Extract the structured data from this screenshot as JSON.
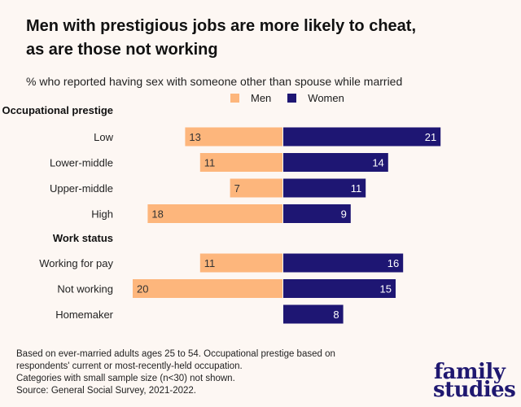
{
  "title": "Men with prestigious jobs are more likely to cheat, as are those not working",
  "title_lines": [
    "Men with prestigious jobs are more likely to cheat,",
    "as are those not working"
  ],
  "subtitle": "% who reported having sex with someone other than spouse while married",
  "legend": [
    {
      "label": "Men",
      "color": "#fdb67c"
    },
    {
      "label": "Women",
      "color": "#1e1673"
    }
  ],
  "chart_data": {
    "type": "bar",
    "orientation": "horizontal-diverging",
    "title": "Men with prestigious jobs are more likely to cheat, as are those not working",
    "subtitle": "% who reported having sex with someone other than spouse while married",
    "groups": [
      {
        "name": "Occupational prestige",
        "categories": [
          "Low",
          "Lower-middle",
          "Upper-middle",
          "High"
        ],
        "men": [
          13,
          11,
          7,
          18
        ],
        "women": [
          21,
          14,
          11,
          9
        ]
      },
      {
        "name": "Work status",
        "categories": [
          "Working for pay",
          "Not working",
          "Homemaker"
        ],
        "men": [
          11,
          20,
          null
        ],
        "women": [
          16,
          15,
          8
        ]
      }
    ],
    "series": [
      {
        "name": "Men",
        "color": "#fdb67c"
      },
      {
        "name": "Women",
        "color": "#1e1673"
      }
    ],
    "legend_position": "top-center",
    "grid": false
  },
  "footnote": [
    "Based on ever-married adults ages 25 to 54. Occupational prestige based on",
    "respondents' current or most-recently-held occupation.",
    "Categories with small sample size (n<30) not shown.",
    "Source: General Social Survey, 2021-2022."
  ],
  "logo": [
    "family",
    "studies"
  ]
}
